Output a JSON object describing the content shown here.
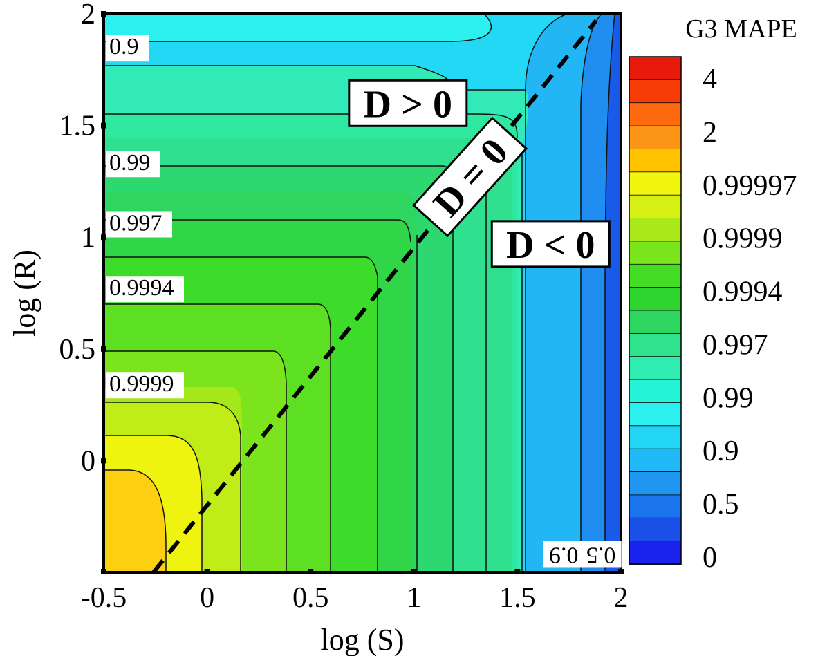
{
  "chart_data": {
    "type": "contour",
    "xlabel": "log (S)",
    "ylabel": "log (R)",
    "colorbar_title": "G3 MAPE",
    "xlim": [
      -0.5,
      2
    ],
    "ylim": [
      -0.5,
      2
    ],
    "x_ticks": [
      "-0.5",
      "0",
      "0.5",
      "1",
      "1.5",
      "2"
    ],
    "y_ticks": [
      "2",
      "1.5",
      "1",
      "0.5",
      "0"
    ],
    "colorbar_ticks": [
      "4",
      "2",
      "0.99997",
      "0.9999",
      "0.9994",
      "0.997",
      "0.99",
      "0.9",
      "0.5",
      "0"
    ],
    "colorbar_colors": [
      "#e81a0c",
      "#f83c08",
      "#fe6a10",
      "#fb9516",
      "#ffc300",
      "#f2f50c",
      "#d6f016",
      "#aae81a",
      "#7ae41c",
      "#45dc24",
      "#2ed52e",
      "#2ed55e",
      "#2fe38c",
      "#31ecb0",
      "#26f4d8",
      "#2cf0f0",
      "#22d5f5",
      "#20b8f5",
      "#1f96f0",
      "#1a74ec",
      "#1a4fe8",
      "#1a22ee"
    ],
    "contour_labels": [
      {
        "text": "0.9",
        "x": -0.48,
        "y": 1.82
      },
      {
        "text": "0.99",
        "x": -0.48,
        "y": 1.3
      },
      {
        "text": "0.997",
        "x": -0.48,
        "y": 1.03
      },
      {
        "text": "0.9994",
        "x": -0.48,
        "y": 0.74
      },
      {
        "text": "0.9999",
        "x": -0.48,
        "y": 0.31
      },
      {
        "text": "0.9",
        "x": 1.67,
        "y": -0.39,
        "rotated": true
      },
      {
        "text": "0.5",
        "x": 1.85,
        "y": -0.39,
        "rotated": true
      }
    ],
    "regions": [
      {
        "text": "D > 0",
        "x": 0.97,
        "y": 1.6
      },
      {
        "text": "D = 0",
        "x": 1.27,
        "y": 1.27,
        "rotated": true
      },
      {
        "text": "D < 0",
        "x": 1.66,
        "y": 0.97
      }
    ],
    "boundary_line": {
      "x": [
        -0.26,
        1.88
      ],
      "y": [
        -0.5,
        1.97
      ]
    }
  }
}
